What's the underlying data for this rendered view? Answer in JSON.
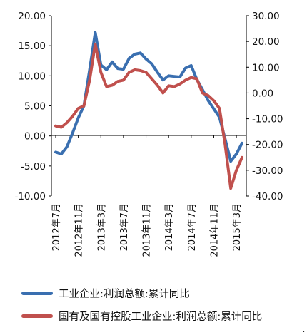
{
  "chart_data": {
    "type": "line",
    "x_tick_labels": [
      "2012年7月",
      "2012年11月",
      "2013年3月",
      "2013年7月",
      "2013年11月",
      "2014年3月",
      "2014年7月",
      "2014年11月",
      "2015年3月"
    ],
    "x_tick_index": [
      0,
      4,
      8,
      12,
      16,
      20,
      24,
      28,
      32
    ],
    "ylim_left": [
      -10,
      20
    ],
    "yticks_left": [
      "20.00",
      "15.00",
      "10.00",
      "5.00",
      "0.00",
      "-5.00",
      "-10.00"
    ],
    "ylim_right": [
      -40,
      30
    ],
    "yticks_right": [
      "30.00",
      "20.00",
      "10.00",
      "0.00",
      "-10.00",
      "-20.00",
      "-30.00",
      "-40.00"
    ],
    "series": [
      {
        "name": "工业企业:利润总额:累计同比",
        "axis": "left",
        "color": "#3A6FB0",
        "values": [
          -2.7,
          -3.0,
          -1.8,
          0.5,
          3.0,
          5.0,
          11.0,
          17.2,
          11.8,
          11.0,
          12.3,
          11.2,
          11.1,
          12.9,
          13.6,
          13.8,
          12.8,
          12.0,
          10.6,
          9.3,
          10.0,
          9.9,
          9.8,
          11.3,
          11.7,
          9.4,
          7.7,
          5.9,
          4.5,
          3.1,
          -0.5,
          -4.2,
          -3.0,
          -1.2
        ]
      },
      {
        "name": "国有及国有控股工业企业:利润总额:累计同比",
        "axis": "right",
        "color": "#C0504D",
        "values": [
          -12.8,
          -13.3,
          -11.5,
          -9.0,
          -6.0,
          -5.0,
          5.0,
          19.0,
          8.0,
          2.5,
          3.0,
          4.5,
          5.0,
          8.0,
          9.0,
          8.7,
          8.0,
          5.5,
          3.0,
          0.0,
          2.8,
          2.5,
          3.5,
          5.0,
          6.0,
          5.5,
          0.0,
          -1.0,
          -3.0,
          -6.0,
          -20.0,
          -37.0,
          -30.0,
          -25.0
        ]
      }
    ],
    "grid": false,
    "legend_position": "bottom"
  },
  "legend": {
    "item1": "工业企业:利润总额:累计同比",
    "item2": "国有及国有控股工业企业:利润总额:累计同比"
  },
  "footer_mark": "."
}
